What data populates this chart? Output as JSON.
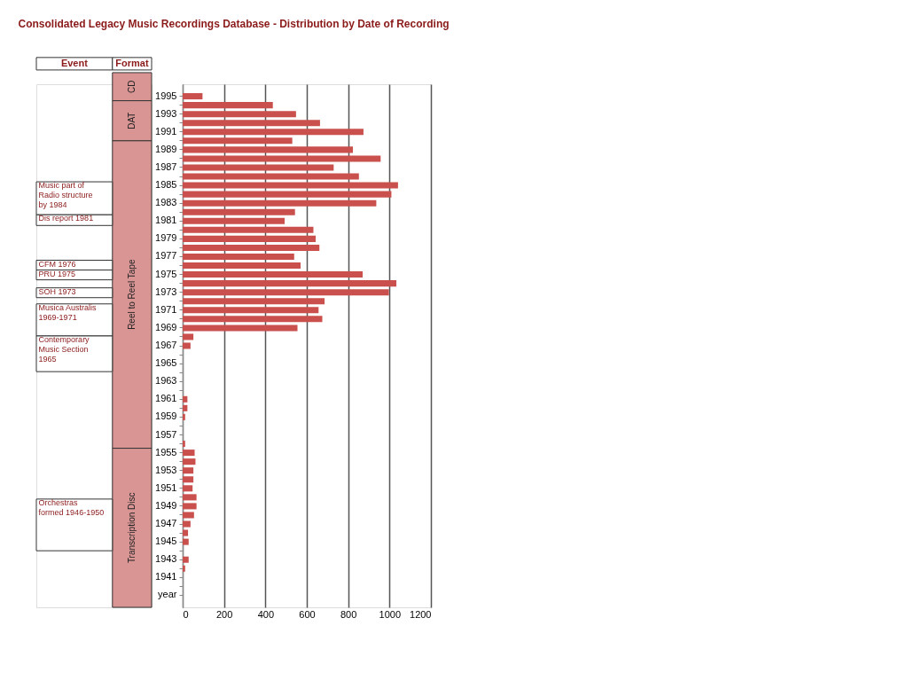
{
  "chart_data": {
    "type": "bar",
    "orientation": "horizontal",
    "title": "Consolidated Legacy Music Recordings Database - Distribution by Date of Recording",
    "categories": [
      "1995",
      null,
      "1993",
      null,
      "1991",
      null,
      "1989",
      null,
      "1987",
      null,
      "1985",
      null,
      "1983",
      null,
      "1981",
      null,
      "1979",
      null,
      "1977",
      null,
      "1975",
      null,
      "1973",
      null,
      "1971",
      null,
      "1969",
      null,
      "1967",
      null,
      "1965",
      null,
      "1963",
      null,
      "1961",
      null,
      "1959",
      null,
      "1957",
      null,
      "1955",
      null,
      "1953",
      null,
      "1951",
      null,
      "1949",
      null,
      "1947",
      null,
      "1945",
      null,
      "1943",
      null,
      "1941",
      null,
      "year"
    ],
    "values": [
      96,
      436,
      548,
      664,
      874,
      530,
      823,
      957,
      730,
      852,
      1041,
      1009,
      936,
      543,
      493,
      632,
      643,
      661,
      539,
      570,
      870,
      1033,
      997,
      686,
      657,
      675,
      555,
      52,
      38,
      0,
      0,
      0,
      0,
      0,
      23,
      23,
      12,
      0,
      0,
      12,
      58,
      62,
      52,
      52,
      48,
      67,
      67,
      55,
      38,
      26,
      29,
      0,
      29,
      12,
      0,
      0,
      0
    ],
    "color": "#c9504c",
    "xlim": [
      0,
      1200
    ],
    "xticks": [
      0,
      200,
      400,
      600,
      800,
      {
        "value": 1000,
        "label": "1000"
      },
      {
        "value": 1200,
        "label": "1200"
      }
    ],
    "grid": "x",
    "annotations": [
      "Event",
      "Format",
      "CD",
      "DAT",
      "Reel to Reel Tape",
      "Transcription Disc",
      "Music part of Radio structure by 1984",
      "Dis report 1981",
      "CFM 1976",
      "PRU 1975",
      "SOH 1973",
      "Musica Australis 1969-1971",
      "Contemporary Music Section 1965",
      "Orchestras formed 1946-1950"
    ]
  }
}
